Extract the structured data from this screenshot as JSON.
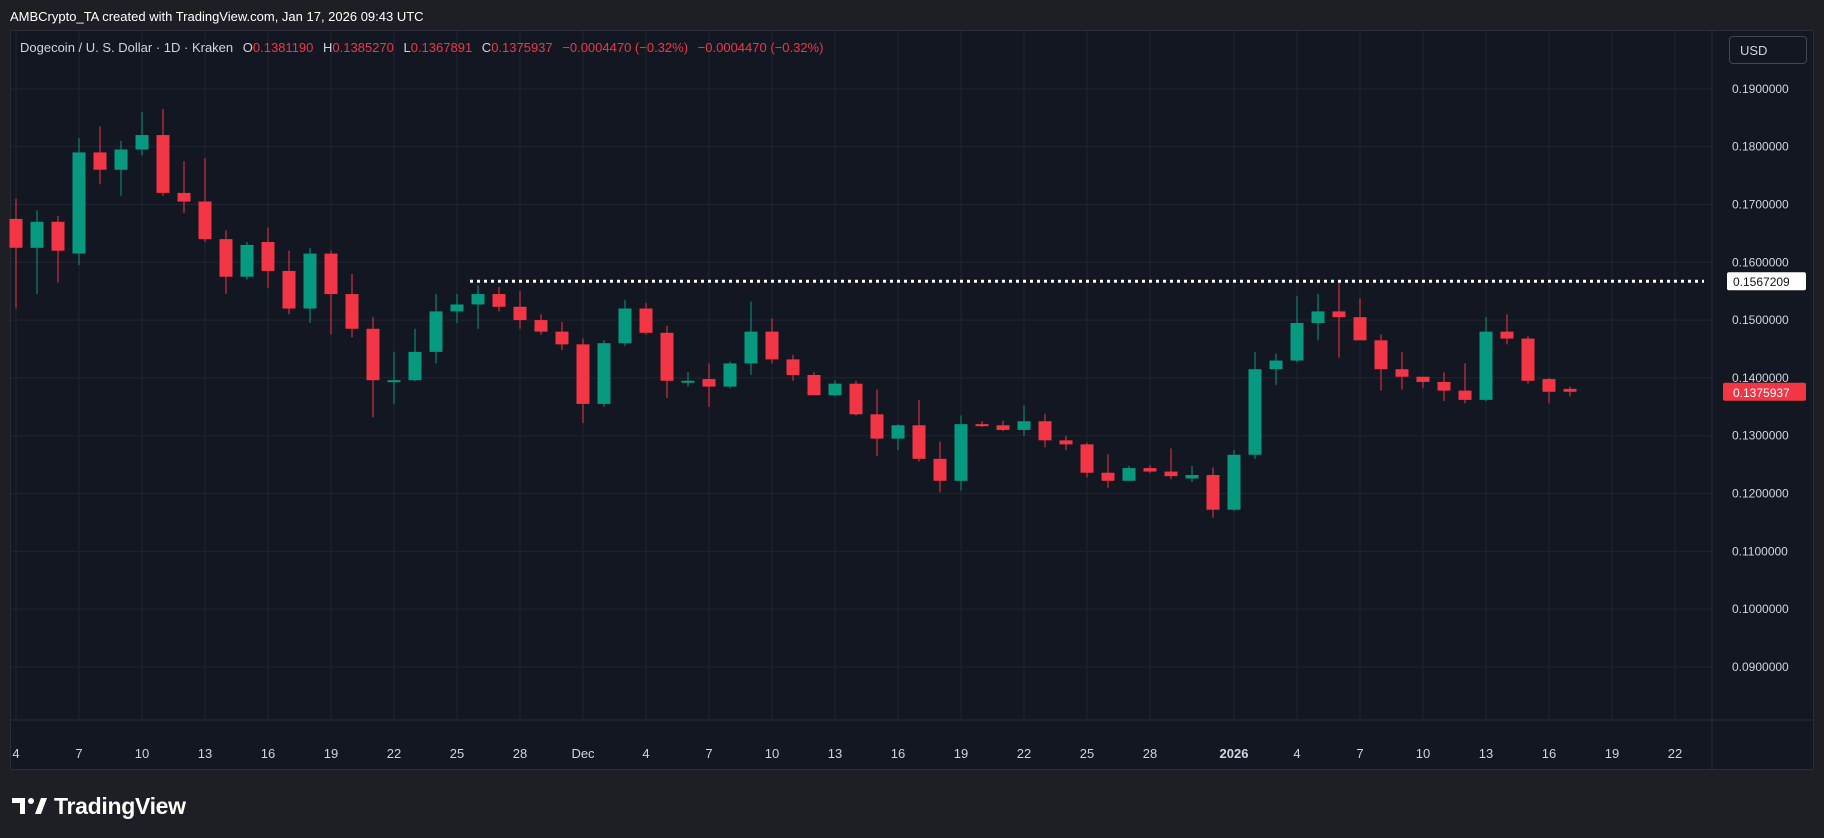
{
  "header": {
    "attribution": "AMBCrypto_TA created with TradingView.com, Jan 17, 2026 09:43 UTC"
  },
  "legend": {
    "symbol": "Dogecoin / U. S. Dollar · 1D · Kraken",
    "open_label": "O",
    "open": "0.1381190",
    "high_label": "H",
    "high": "0.1385270",
    "low_label": "L",
    "low": "0.1367891",
    "close_label": "C",
    "close": "0.1375937",
    "change": "−0.0004470 (−0.32%)",
    "change2": "−0.0004470 (−0.32%)"
  },
  "currency_button": "USD",
  "footer": {
    "brand": "TradingView",
    "logo_icon": "tradingview-logo-icon"
  },
  "chart_data": {
    "type": "candlestick",
    "symbol": "DOGE/USD",
    "interval": "1D",
    "exchange": "Kraken",
    "y_range": [
      0.081,
      0.2
    ],
    "y_ticks": [
      0.19,
      0.18,
      0.17,
      0.16,
      0.15,
      0.14,
      0.13,
      0.12,
      0.11,
      0.1,
      0.09
    ],
    "y_tick_labels": [
      "0.1900000",
      "0.1800000",
      "0.1700000",
      "0.1600000",
      "0.1500000",
      "0.1400000",
      "0.1300000",
      "0.1200000",
      "0.1100000",
      "0.1000000",
      "0.0900000"
    ],
    "x_ticks": [
      {
        "label": "4",
        "index": 0
      },
      {
        "label": "7",
        "index": 3
      },
      {
        "label": "10",
        "index": 6
      },
      {
        "label": "13",
        "index": 9
      },
      {
        "label": "16",
        "index": 12
      },
      {
        "label": "19",
        "index": 15
      },
      {
        "label": "22",
        "index": 18
      },
      {
        "label": "25",
        "index": 21
      },
      {
        "label": "28",
        "index": 24
      },
      {
        "label": "Dec",
        "index": 27
      },
      {
        "label": "4",
        "index": 30
      },
      {
        "label": "7",
        "index": 33
      },
      {
        "label": "10",
        "index": 36
      },
      {
        "label": "13",
        "index": 39
      },
      {
        "label": "16",
        "index": 42
      },
      {
        "label": "19",
        "index": 45
      },
      {
        "label": "22",
        "index": 48
      },
      {
        "label": "25",
        "index": 51
      },
      {
        "label": "28",
        "index": 54
      },
      {
        "label": "2026",
        "index": 58,
        "bold": true
      },
      {
        "label": "4",
        "index": 61
      },
      {
        "label": "7",
        "index": 64
      },
      {
        "label": "10",
        "index": 67
      },
      {
        "label": "13",
        "index": 70
      },
      {
        "label": "16",
        "index": 73
      },
      {
        "label": "19",
        "index": 76
      },
      {
        "label": "22",
        "index": 79
      }
    ],
    "candles": [
      {
        "o": 0.1675,
        "h": 0.171,
        "l": 0.152,
        "c": 0.1625
      },
      {
        "o": 0.1625,
        "h": 0.169,
        "l": 0.1545,
        "c": 0.167
      },
      {
        "o": 0.167,
        "h": 0.168,
        "l": 0.1565,
        "c": 0.162
      },
      {
        "o": 0.1615,
        "h": 0.1815,
        "l": 0.1595,
        "c": 0.179
      },
      {
        "o": 0.179,
        "h": 0.1835,
        "l": 0.1735,
        "c": 0.176
      },
      {
        "o": 0.176,
        "h": 0.181,
        "l": 0.1715,
        "c": 0.1795
      },
      {
        "o": 0.1795,
        "h": 0.186,
        "l": 0.1785,
        "c": 0.182
      },
      {
        "o": 0.182,
        "h": 0.1865,
        "l": 0.1715,
        "c": 0.172
      },
      {
        "o": 0.172,
        "h": 0.1775,
        "l": 0.1685,
        "c": 0.1705
      },
      {
        "o": 0.1705,
        "h": 0.178,
        "l": 0.1635,
        "c": 0.164
      },
      {
        "o": 0.164,
        "h": 0.1655,
        "l": 0.1545,
        "c": 0.1575
      },
      {
        "o": 0.1575,
        "h": 0.1635,
        "l": 0.157,
        "c": 0.163
      },
      {
        "o": 0.1635,
        "h": 0.166,
        "l": 0.1555,
        "c": 0.1585
      },
      {
        "o": 0.1585,
        "h": 0.162,
        "l": 0.151,
        "c": 0.152
      },
      {
        "o": 0.152,
        "h": 0.1625,
        "l": 0.1495,
        "c": 0.1615
      },
      {
        "o": 0.1615,
        "h": 0.162,
        "l": 0.1475,
        "c": 0.1545
      },
      {
        "o": 0.1545,
        "h": 0.158,
        "l": 0.147,
        "c": 0.1485
      },
      {
        "o": 0.1485,
        "h": 0.1505,
        "l": 0.1332,
        "c": 0.1396
      },
      {
        "o": 0.1396,
        "h": 0.1445,
        "l": 0.1355,
        "c": 0.1396
      },
      {
        "o": 0.1396,
        "h": 0.1485,
        "l": 0.1394,
        "c": 0.1445
      },
      {
        "o": 0.1445,
        "h": 0.1545,
        "l": 0.1425,
        "c": 0.1515
      },
      {
        "o": 0.1515,
        "h": 0.1545,
        "l": 0.1495,
        "c": 0.1527
      },
      {
        "o": 0.1527,
        "h": 0.156,
        "l": 0.1485,
        "c": 0.1545
      },
      {
        "o": 0.1545,
        "h": 0.1557,
        "l": 0.1515,
        "c": 0.1523
      },
      {
        "o": 0.1523,
        "h": 0.155,
        "l": 0.1485,
        "c": 0.15
      },
      {
        "o": 0.15,
        "h": 0.151,
        "l": 0.1475,
        "c": 0.148
      },
      {
        "o": 0.148,
        "h": 0.1497,
        "l": 0.1448,
        "c": 0.1458
      },
      {
        "o": 0.1458,
        "h": 0.1468,
        "l": 0.1322,
        "c": 0.1355
      },
      {
        "o": 0.1355,
        "h": 0.1465,
        "l": 0.135,
        "c": 0.146
      },
      {
        "o": 0.146,
        "h": 0.1535,
        "l": 0.1455,
        "c": 0.152
      },
      {
        "o": 0.152,
        "h": 0.153,
        "l": 0.1475,
        "c": 0.1478
      },
      {
        "o": 0.1478,
        "h": 0.149,
        "l": 0.1365,
        "c": 0.1395
      },
      {
        "o": 0.1392,
        "h": 0.141,
        "l": 0.1385,
        "c": 0.1395
      },
      {
        "o": 0.1398,
        "h": 0.1425,
        "l": 0.135,
        "c": 0.1385
      },
      {
        "o": 0.1385,
        "h": 0.1428,
        "l": 0.1382,
        "c": 0.1425
      },
      {
        "o": 0.1425,
        "h": 0.1532,
        "l": 0.1405,
        "c": 0.148
      },
      {
        "o": 0.148,
        "h": 0.1503,
        "l": 0.1425,
        "c": 0.1432
      },
      {
        "o": 0.1432,
        "h": 0.144,
        "l": 0.1395,
        "c": 0.1405
      },
      {
        "o": 0.1405,
        "h": 0.141,
        "l": 0.1375,
        "c": 0.137
      },
      {
        "o": 0.137,
        "h": 0.1395,
        "l": 0.1368,
        "c": 0.139
      },
      {
        "o": 0.139,
        "h": 0.1395,
        "l": 0.1335,
        "c": 0.1337
      },
      {
        "o": 0.1337,
        "h": 0.138,
        "l": 0.1265,
        "c": 0.1295
      },
      {
        "o": 0.1295,
        "h": 0.132,
        "l": 0.1275,
        "c": 0.1318
      },
      {
        "o": 0.1318,
        "h": 0.1362,
        "l": 0.1255,
        "c": 0.126
      },
      {
        "o": 0.126,
        "h": 0.129,
        "l": 0.1202,
        "c": 0.1222
      },
      {
        "o": 0.1222,
        "h": 0.1335,
        "l": 0.1205,
        "c": 0.132
      },
      {
        "o": 0.132,
        "h": 0.1325,
        "l": 0.1315,
        "c": 0.1318
      },
      {
        "o": 0.1318,
        "h": 0.1326,
        "l": 0.1308,
        "c": 0.131
      },
      {
        "o": 0.131,
        "h": 0.1352,
        "l": 0.13,
        "c": 0.1325
      },
      {
        "o": 0.1325,
        "h": 0.1338,
        "l": 0.128,
        "c": 0.1292
      },
      {
        "o": 0.1292,
        "h": 0.13,
        "l": 0.1275,
        "c": 0.1285
      },
      {
        "o": 0.1285,
        "h": 0.1288,
        "l": 0.1228,
        "c": 0.1236
      },
      {
        "o": 0.1236,
        "h": 0.1268,
        "l": 0.121,
        "c": 0.1222
      },
      {
        "o": 0.1222,
        "h": 0.1248,
        "l": 0.1222,
        "c": 0.1244
      },
      {
        "o": 0.1244,
        "h": 0.1249,
        "l": 0.1235,
        "c": 0.1238
      },
      {
        "o": 0.1238,
        "h": 0.1278,
        "l": 0.1225,
        "c": 0.123
      },
      {
        "o": 0.1226,
        "h": 0.1248,
        "l": 0.122,
        "c": 0.1232
      },
      {
        "o": 0.1232,
        "h": 0.1245,
        "l": 0.1158,
        "c": 0.1172
      },
      {
        "o": 0.1172,
        "h": 0.1275,
        "l": 0.117,
        "c": 0.1267
      },
      {
        "o": 0.1267,
        "h": 0.1445,
        "l": 0.126,
        "c": 0.1415
      },
      {
        "o": 0.1415,
        "h": 0.1442,
        "l": 0.1388,
        "c": 0.143
      },
      {
        "o": 0.143,
        "h": 0.1542,
        "l": 0.1427,
        "c": 0.1495
      },
      {
        "o": 0.1495,
        "h": 0.1545,
        "l": 0.1465,
        "c": 0.1515
      },
      {
        "o": 0.1515,
        "h": 0.1567,
        "l": 0.1435,
        "c": 0.1505
      },
      {
        "o": 0.1505,
        "h": 0.1538,
        "l": 0.147,
        "c": 0.1465
      },
      {
        "o": 0.1465,
        "h": 0.1475,
        "l": 0.1378,
        "c": 0.1415
      },
      {
        "o": 0.1415,
        "h": 0.1445,
        "l": 0.138,
        "c": 0.1402
      },
      {
        "o": 0.1402,
        "h": 0.1402,
        "l": 0.1382,
        "c": 0.1393
      },
      {
        "o": 0.1393,
        "h": 0.141,
        "l": 0.136,
        "c": 0.1378
      },
      {
        "o": 0.1378,
        "h": 0.1425,
        "l": 0.1356,
        "c": 0.1362
      },
      {
        "o": 0.1362,
        "h": 0.1505,
        "l": 0.136,
        "c": 0.148
      },
      {
        "o": 0.148,
        "h": 0.151,
        "l": 0.1458,
        "c": 0.1468
      },
      {
        "o": 0.1468,
        "h": 0.1472,
        "l": 0.139,
        "c": 0.1395
      },
      {
        "o": 0.1398,
        "h": 0.14,
        "l": 0.1356,
        "c": 0.1376
      },
      {
        "o": 0.1381,
        "h": 0.1385,
        "l": 0.1368,
        "c": 0.1376
      }
    ],
    "level_line": {
      "value": 0.1567209,
      "label": "0.1567209",
      "start_index": 22,
      "style": "dotted"
    },
    "last_price": {
      "value": 0.1375937,
      "label": "0.1375937"
    },
    "colors": {
      "up": "#089981",
      "down": "#f23645",
      "background": "#131722",
      "grid": "#1f2430",
      "text": "#d1d4dc"
    }
  }
}
